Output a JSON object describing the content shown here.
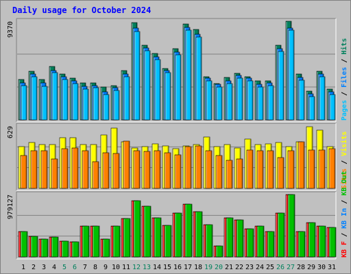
{
  "title": "Daily usage for October 2024",
  "chart_data": {
    "type": "bar",
    "title": "Daily usage for October 2024",
    "categories": [
      "1",
      "2",
      "3",
      "4",
      "5",
      "6",
      "7",
      "8",
      "9",
      "10",
      "11",
      "12",
      "13",
      "14",
      "15",
      "16",
      "17",
      "18",
      "19",
      "20",
      "21",
      "22",
      "23",
      "24",
      "25",
      "26",
      "27",
      "28",
      "29",
      "30",
      "31"
    ],
    "weekend_days": [
      "5",
      "6",
      "12",
      "13",
      "19",
      "20",
      "26",
      "27"
    ],
    "weekday_label_color": "#000000",
    "weekend_label_color": "#00805c",
    "panels": [
      {
        "id": "top",
        "ymax_label": "9370",
        "ymax": 9370,
        "side_labels": [
          {
            "text": "Pages",
            "color": "#00c0ff"
          },
          {
            "text": " / ",
            "color": "#000000"
          },
          {
            "text": "Files",
            "color": "#0080ff"
          },
          {
            "text": " / ",
            "color": "#000000"
          },
          {
            "text": "Hits",
            "color": "#00805c"
          }
        ],
        "series": [
          {
            "name": "Hits",
            "color": "#00805c",
            "values": [
              3810,
              4630,
              3810,
              5050,
              4370,
              3950,
              3530,
              3530,
              3110,
              3280,
              4710,
              9230,
              7070,
              6310,
              4880,
              6770,
              9140,
              8580,
              4120,
              3440,
              4020,
              4450,
              4110,
              3700,
              3700,
              7120,
              9370,
              4370,
              2740,
              4620,
              2910
            ]
          },
          {
            "name": "Files",
            "color": "#0080ff",
            "values": [
              3500,
              4370,
              3500,
              4710,
              4120,
              3700,
              3190,
              3280,
              2690,
              3030,
              4370,
              8720,
              6810,
              5970,
              4710,
              6460,
              8800,
              8120,
              3950,
              3360,
              3700,
              4200,
              3950,
              3360,
              3530,
              6780,
              8720,
              4030,
              2490,
              4370,
              2690
            ]
          },
          {
            "name": "Pages",
            "color": "#00c0ff",
            "values": [
              3280,
              4120,
              3190,
              4460,
              3870,
              3440,
              2940,
              3030,
              2440,
              2790,
              4120,
              8380,
              6550,
              5720,
              4460,
              6210,
              8550,
              7870,
              3700,
              3110,
              3440,
              3950,
              3700,
              3110,
              3280,
              6530,
              8550,
              3780,
              2240,
              4120,
              2440
            ]
          }
        ]
      },
      {
        "id": "middle",
        "ymax_label": "629",
        "ymax": 629,
        "side_labels": [
          {
            "text": "Sites",
            "color": "#ff8000"
          },
          {
            "text": " / ",
            "color": "#000000"
          },
          {
            "text": "Visits",
            "color": "#ffff00"
          }
        ],
        "series": [
          {
            "name": "Visits",
            "color": "#ffff00",
            "values": [
              420,
              460,
              440,
              440,
              510,
              510,
              440,
              440,
              540,
              610,
              470,
              410,
              420,
              450,
              430,
              400,
              430,
              440,
              520,
              420,
              440,
              410,
              500,
              440,
              450,
              460,
              420,
              470,
              620,
              590,
              420
            ]
          },
          {
            "name": "Sites",
            "color": "#ff8000",
            "values": [
              330,
              380,
              380,
              300,
              400,
              410,
              380,
              270,
              360,
              350,
              480,
              380,
              370,
              380,
              360,
              340,
              420,
              430,
              380,
              330,
              280,
              300,
              390,
              380,
              380,
              310,
              380,
              470,
              390,
              390,
              400
            ]
          }
        ]
      },
      {
        "id": "bottom",
        "ymax_label": "979127",
        "ymax": 979127,
        "side_labels": [
          {
            "text": "KB F",
            "color": "#ff0000"
          },
          {
            "text": " / ",
            "color": "#000000"
          },
          {
            "text": "KB In",
            "color": "#0080ff"
          },
          {
            "text": " / ",
            "color": "#000000"
          },
          {
            "text": "KB Out",
            "color": "#00c000"
          }
        ],
        "series": [
          {
            "name": "KB F",
            "color": "#ff0000",
            "values": [
              400000,
              320000,
              280000,
              310000,
              250000,
              240000,
              480000,
              480000,
              280000,
              480000,
              600000,
              880000,
              800000,
              610000,
              490000,
              690000,
              830000,
              710000,
              510000,
              170000,
              610000,
              580000,
              440000,
              480000,
              400000,
              690000,
              979127,
              400000,
              540000,
              480000,
              460000
            ]
          },
          {
            "name": "KB Out",
            "color": "#00c000",
            "values": [
              400000,
              320000,
              280000,
              310000,
              250000,
              240000,
              480000,
              480000,
              280000,
              480000,
              600000,
              880000,
              800000,
              610000,
              490000,
              690000,
              830000,
              710000,
              510000,
              170000,
              610000,
              580000,
              440000,
              480000,
              400000,
              690000,
              979127,
              400000,
              540000,
              480000,
              460000
            ]
          }
        ]
      }
    ]
  }
}
